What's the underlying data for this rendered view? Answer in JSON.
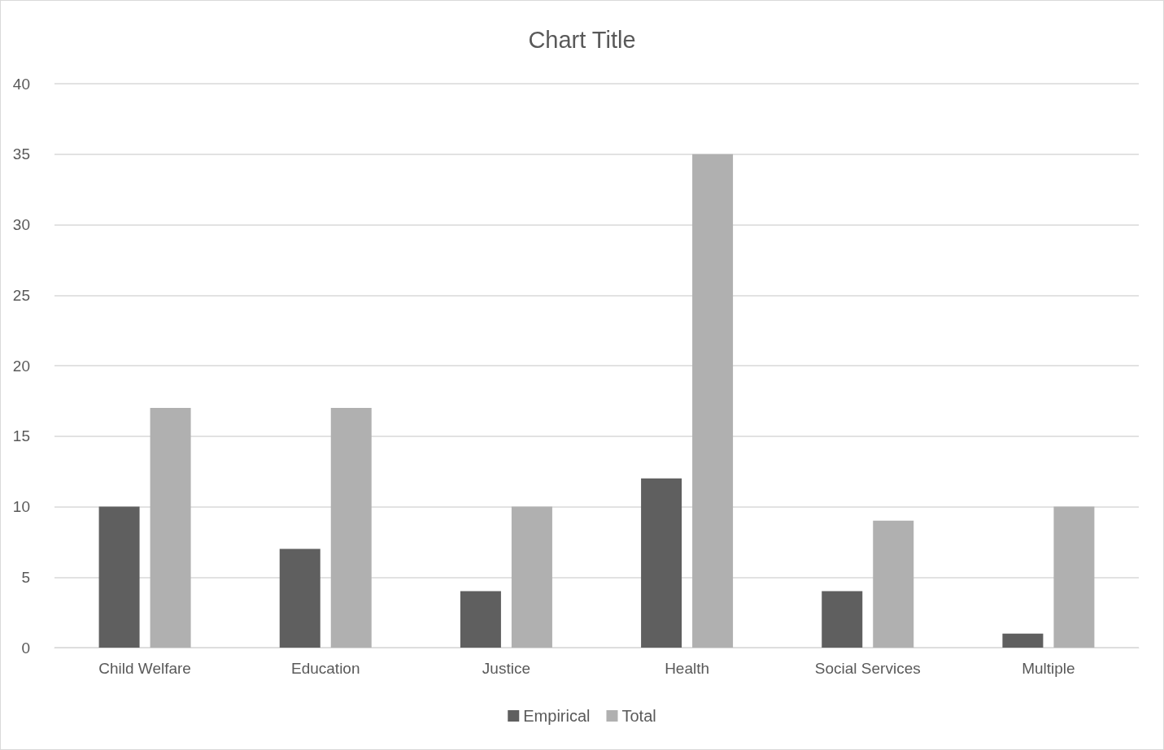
{
  "chart_data": {
    "type": "bar",
    "title": "Chart Title",
    "categories": [
      "Child Welfare",
      "Education",
      "Justice",
      "Health",
      "Social Services",
      "Multiple"
    ],
    "series": [
      {
        "name": "Empirical",
        "color": "#5f5f5f",
        "values": [
          10,
          7,
          4,
          12,
          4,
          1
        ]
      },
      {
        "name": "Total",
        "color": "#b0b0b0",
        "values": [
          17,
          17,
          10,
          35,
          9,
          10
        ]
      }
    ],
    "ylim": [
      0,
      40
    ],
    "yticks": [
      0,
      5,
      10,
      15,
      20,
      25,
      30,
      35,
      40
    ],
    "grid": "y",
    "legend": "bottom"
  }
}
